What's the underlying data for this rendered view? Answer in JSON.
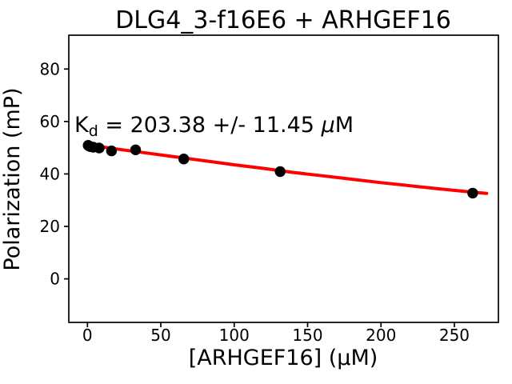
{
  "figure": {
    "title": "DLG4_3-f16E6 + ARHGEF16"
  },
  "chart_data": {
    "type": "scatter",
    "title": "DLG4_3-f16E6 + ARHGEF16",
    "xlabel": "[ARHGEF16] (μM)",
    "ylabel": "Polarization (mP)",
    "xlim": [
      -12.7,
      280
    ],
    "ylim": [
      -16.6,
      92.9
    ],
    "xticks": [
      0,
      50,
      100,
      150,
      200,
      250
    ],
    "yticks": [
      0,
      20,
      40,
      60,
      80
    ],
    "grid": false,
    "legend": false,
    "marker_color": "#000000",
    "curve_color": "#ff0000",
    "annotation": {
      "k": "K",
      "sub": "d",
      "rest": " = 203.38 +/- 11.45 ",
      "mu": "μ",
      "unit": "M",
      "kd_value": 203.38,
      "kd_error": 11.45,
      "kd_units": "μM"
    },
    "points": {
      "x": [
        0.5,
        1,
        2,
        4,
        8,
        16.4,
        32.8,
        65.6,
        131.3,
        262.5
      ],
      "y": [
        50.9,
        50.7,
        50.4,
        50.2,
        49.9,
        48.8,
        49.2,
        45.7,
        40.9,
        32.7
      ]
    },
    "fit_curve": {
      "x": [
        0,
        20,
        40,
        60,
        80,
        100,
        120,
        140,
        160,
        180,
        200,
        220,
        240,
        260,
        272
      ],
      "y": [
        51.1,
        49.5,
        48.0,
        46.5,
        45.0,
        43.5,
        42.1,
        40.6,
        39.3,
        38.0,
        36.7,
        35.5,
        34.3,
        33.2,
        32.6
      ]
    }
  }
}
